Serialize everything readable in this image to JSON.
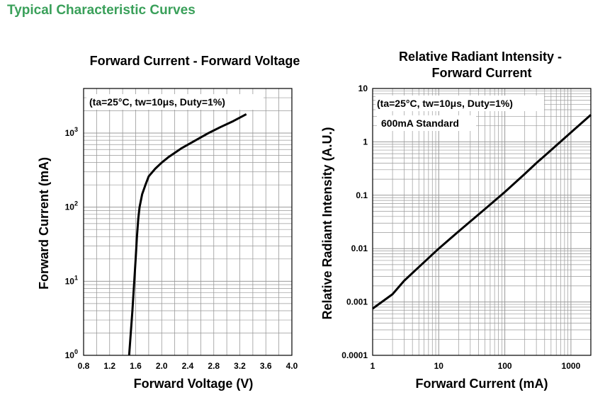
{
  "page_heading": "Typical Characteristic Curves",
  "colors": {
    "heading": "#3aa05a",
    "grid": "#999999",
    "curve": "#000000"
  },
  "chart_data": [
    {
      "type": "line",
      "title": "Forward Current - Forward Voltage",
      "xlabel": "Forward Voltage (V)",
      "ylabel": "Forward Current (mA)",
      "x_scale": "linear",
      "y_scale": "log",
      "xlim": [
        0.8,
        4.0
      ],
      "ylim": [
        1,
        4000
      ],
      "x_ticks": [
        "0.8",
        "1.2",
        "1.6",
        "2.0",
        "2.4",
        "2.8",
        "3.2",
        "3.6",
        "4.0"
      ],
      "x_tick_values": [
        0.8,
        1.2,
        1.6,
        2.0,
        2.4,
        2.8,
        3.2,
        3.6,
        4.0
      ],
      "y_ticks": [
        {
          "value": 1,
          "base": "10",
          "exp": "0"
        },
        {
          "value": 10,
          "base": "10",
          "exp": "1"
        },
        {
          "value": 100,
          "base": "10",
          "exp": "2"
        },
        {
          "value": 1000,
          "base": "10",
          "exp": "3"
        }
      ],
      "annotations": [
        "(ta=25°C, tw=10μs, Duty=1%)"
      ],
      "grid": true,
      "series": [
        {
          "x": [
            1.5,
            1.55,
            1.6,
            1.62,
            1.64,
            1.66,
            1.7,
            1.75,
            1.8,
            1.9,
            2.0,
            2.1,
            2.3,
            2.5,
            2.7,
            2.9,
            3.1,
            3.3
          ],
          "y": [
            1,
            4,
            20,
            40,
            70,
            100,
            150,
            200,
            260,
            330,
            400,
            470,
            620,
            780,
            980,
            1200,
            1450,
            1800
          ]
        }
      ]
    },
    {
      "type": "line",
      "title_lines": [
        "Relative Radiant Intensity -",
        "Forward Current"
      ],
      "xlabel": "Forward Current (mA)",
      "ylabel": "Relative Radiant Intensity (A.U.)",
      "x_scale": "log",
      "y_scale": "log",
      "xlim": [
        1,
        2000
      ],
      "ylim": [
        0.0001,
        10
      ],
      "x_ticks": [
        "1",
        "10",
        "100",
        "1000"
      ],
      "x_tick_values": [
        1,
        10,
        100,
        1000
      ],
      "y_ticks": [
        "10",
        "1",
        "0.1",
        "0.01",
        "0.001",
        "0.0001"
      ],
      "y_tick_values": [
        10,
        1,
        0.1,
        0.01,
        0.001,
        0.0001
      ],
      "annotations": [
        "(ta=25°C, tw=10μs, Duty=1%)",
        "600mA Standard"
      ],
      "grid": true,
      "series": [
        {
          "x": [
            1,
            2,
            3,
            5,
            10,
            20,
            50,
            100,
            200,
            300,
            500,
            1000,
            2000
          ],
          "y": [
            0.00075,
            0.0014,
            0.0025,
            0.0045,
            0.01,
            0.021,
            0.055,
            0.115,
            0.25,
            0.4,
            0.7,
            1.5,
            3.2
          ]
        }
      ]
    }
  ]
}
